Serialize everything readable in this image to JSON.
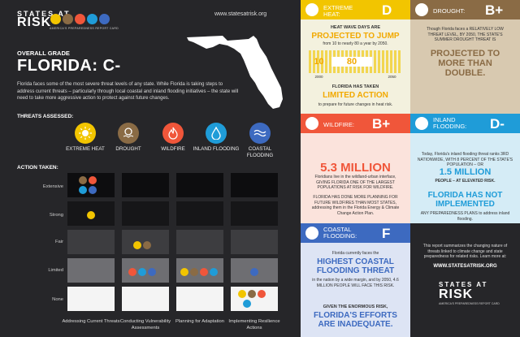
{
  "header": {
    "logo_title": "STATES AT",
    "logo_risk": "RISK",
    "logo_subtitle": "AMERICA'S PREPAREDNESS REPORT CARD",
    "website": "www.statesatrisk.org"
  },
  "overall": {
    "label": "OVERALL GRADE",
    "grade": "FLORIDA: C-",
    "intro": "Florida faces some of the most severe threat levels of any state. While Florida is taking steps to address current threats – particularly through local coastal and inland flooding initiatives – the state will need to take more aggressive action to protect against future changes."
  },
  "threats_heading": "THREATS ASSESSED:",
  "threats": [
    {
      "label": "EXTREME HEAT",
      "icon": "sun-icon",
      "color": "#f2c500"
    },
    {
      "label": "DROUGHT",
      "icon": "drought-icon",
      "color": "#8a6b45"
    },
    {
      "label": "WILDFIRE",
      "icon": "flame-icon",
      "color": "#f0563a"
    },
    {
      "label": "INLAND FLOODING",
      "icon": "water-drop-icon",
      "color": "#1f9cd8"
    },
    {
      "label": "COASTAL FLOODING",
      "icon": "wave-icon",
      "color": "#3d6ac0"
    }
  ],
  "action_heading": "ACTION TAKEN:",
  "action_levels": [
    "Extensive",
    "Strong",
    "Fair",
    "Limited",
    "None"
  ],
  "action_columns": [
    "Addressing Current Threats",
    "Conducting Vulnerability Assessments",
    "Planning for Adaptation",
    "Implementing Resilience Actions"
  ],
  "action_placements": {
    "Addressing Current Threats": {
      "Extensive": [
        "drought-icon",
        "flame-icon",
        "water-drop-icon",
        "wave-icon"
      ],
      "Strong": [
        "sun-icon"
      ]
    },
    "Conducting Vulnerability Assessments": {
      "Fair": [
        "sun-icon",
        "drought-icon"
      ],
      "Limited": [
        "flame-icon",
        "water-drop-icon",
        "wave-icon"
      ]
    },
    "Planning for Adaptation": {
      "Limited": [
        "sun-icon",
        "drought-icon",
        "flame-icon",
        "water-drop-icon"
      ]
    },
    "Implementing Resilience Actions": {
      "Limited": [
        "wave-icon"
      ],
      "None": [
        "sun-icon",
        "drought-icon",
        "flame-icon",
        "water-drop-icon"
      ]
    }
  },
  "panels": {
    "heat": {
      "title": "EXTREME HEAT:",
      "grade": "D",
      "lead": "HEAT WAVE DAYS ARE",
      "headline": "PROJECTED TO JUMP",
      "sub": "from 10 to nearly 80 a year by 2050.",
      "value_a": "10",
      "value_b": "80",
      "year_a": "2000",
      "year_b": "2050",
      "line2": "FLORIDA HAS TAKEN",
      "headline2": "LIMITED ACTION",
      "sub2": "to prepare for future changes in heat risk."
    },
    "drought": {
      "title": "DROUGHT:",
      "grade": "B+",
      "text": "Though Florida faces a RELATIVELY LOW THREAT LEVEL, BY 2050, THE STATE'S SUMMER DROUGHT THREAT IS",
      "headline": "PROJECTED TO MORE THAN DOUBLE."
    },
    "wildfire": {
      "title": "WILDFIRE:",
      "grade": "B+",
      "headline": "5.3 MILLION",
      "text": "Floridians live in the wildland-urban interface, GIVING FLORIDA ONE OF THE LARGEST POPULATIONS AT RISK FOR WILDFIRE.",
      "text2": "FLORIDA HAS DONE MORE PLANNING FOR FUTURE WILDFIRES THAN MOST STATES, addressing them in the Florida Energy & Climate Change Action Plan."
    },
    "inland": {
      "title": "INLAND FLOODING:",
      "grade": "D-",
      "text": "Today, Florida's inland flooding threat ranks 3RD NATIONWIDE, WITH 8 PERCENT OF THE STATE'S POPULATION – OR",
      "headline": "1.5 MILLION",
      "sub": "PEOPLE – AT ELEVATED RISK.",
      "headline2": "FLORIDA HAS NOT IMPLEMENTED",
      "sub2": "ANY PREPAREDNESS PLANS to address inland flooding."
    },
    "coastal": {
      "title": "COASTAL FLOODING:",
      "grade": "F",
      "text": "Florida currently faces the",
      "headline": "HIGHEST COASTAL FLOODING THREAT",
      "sub": "in the nation by a wide margin, and by 2050, 4.6 MILLION PEOPLE WILL FACE THIS RISK.",
      "text2": "GIVEN THE ENORMOUS RISK,",
      "headline2": "FLORIDA'S EFFORTS ARE INADEQUATE."
    },
    "summary": {
      "text": "This report summarizes the changing nature of threats linked to climate change and state preparedness for related risks. Learn more at:",
      "url": "WWW.STATESATRISK.ORG",
      "logo_title": "STATES AT",
      "logo_risk": "RISK",
      "logo_subtitle": "AMERICA'S PREPAREDNESS REPORT CARD"
    }
  }
}
